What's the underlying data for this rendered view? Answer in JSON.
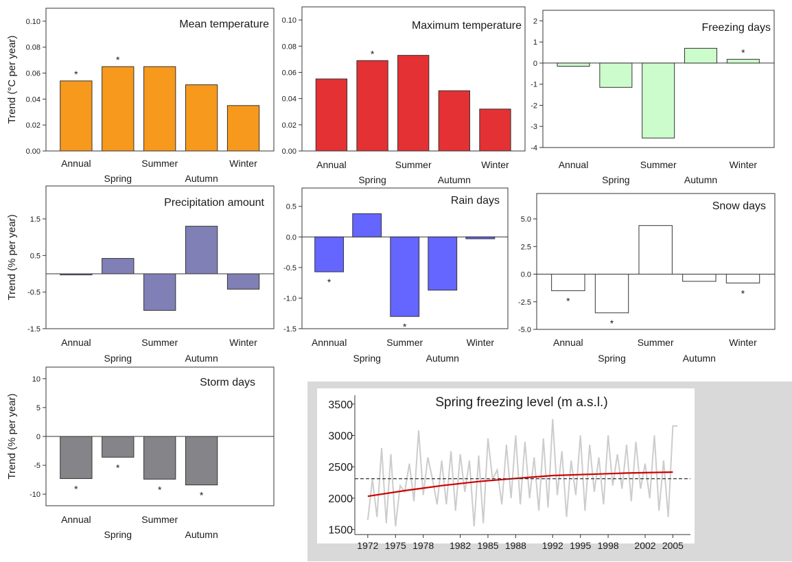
{
  "chart_data": [
    {
      "id": "mean-temperature",
      "type": "bar",
      "title": "Mean temperature",
      "ylabel": "Trend (°C per year)",
      "categories": [
        "Annual",
        "Spring",
        "Summer",
        "Autumn",
        "Winter"
      ],
      "values": [
        0.054,
        0.065,
        0.065,
        0.051,
        0.035
      ],
      "significant": [
        true,
        true,
        false,
        false,
        false
      ],
      "ylim": [
        0,
        0.11
      ],
      "yticks": [
        "0.00",
        "0.02",
        "0.04",
        "0.06",
        "0.08",
        "0.10"
      ],
      "ytick_values": [
        0,
        0.02,
        0.04,
        0.06,
        0.08,
        0.1
      ],
      "color": "#f7991c",
      "grid": false
    },
    {
      "id": "maximum-temperature",
      "type": "bar",
      "title": "Maximum temperature",
      "ylabel": "",
      "categories": [
        "Annual",
        "Spring",
        "Summer",
        "Autumn",
        "Winter"
      ],
      "values": [
        0.055,
        0.069,
        0.073,
        0.046,
        0.032
      ],
      "significant": [
        false,
        true,
        false,
        false,
        false
      ],
      "ylim": [
        0,
        0.11
      ],
      "yticks": [
        "0.00",
        "0.02",
        "0.04",
        "0.06",
        "0.08",
        "0.10"
      ],
      "ytick_values": [
        0,
        0.02,
        0.04,
        0.06,
        0.08,
        0.1
      ],
      "color": "#e33134",
      "grid": false
    },
    {
      "id": "freezing-days",
      "type": "bar",
      "title": "Freezing days",
      "ylabel": "",
      "categories": [
        "Annual",
        "Spring",
        "Summer",
        "Autumn",
        "Winter"
      ],
      "values": [
        -0.15,
        -1.15,
        -3.55,
        0.7,
        0.18
      ],
      "significant": [
        false,
        false,
        false,
        false,
        true
      ],
      "ylim": [
        -4,
        2.5
      ],
      "yticks": [
        "2",
        "1",
        "0",
        "-1",
        "-2",
        "-3",
        "-4"
      ],
      "ytick_values": [
        2,
        1,
        0,
        -1,
        -2,
        -3,
        -4
      ],
      "color": "#ccfccc",
      "grid": false
    },
    {
      "id": "precipitation-amount",
      "type": "bar",
      "title": "Precipitation amount",
      "ylabel": "Trend (% per year)",
      "categories": [
        "Annual",
        "Spring",
        "Summer",
        "Autumn",
        "Winter"
      ],
      "values": [
        -0.03,
        0.42,
        -1.0,
        1.3,
        -0.42
      ],
      "significant": [
        false,
        false,
        false,
        false,
        false
      ],
      "ylim": [
        -1.5,
        2.4
      ],
      "yticks": [
        "1.5",
        "0.5",
        "-0.5",
        "-1.5"
      ],
      "ytick_values": [
        1.5,
        0.5,
        -0.5,
        -1.5
      ],
      "color": "#8080b6",
      "grid": false
    },
    {
      "id": "rain-days",
      "type": "bar",
      "title": "Rain days",
      "ylabel": "",
      "categories": [
        "Annnual",
        "Spring",
        "Summer",
        "Autumn",
        "Winter"
      ],
      "values": [
        -0.57,
        0.38,
        -1.3,
        -0.87,
        -0.03
      ],
      "significant": [
        true,
        false,
        true,
        false,
        false
      ],
      "ylim": [
        -1.5,
        0.8
      ],
      "yticks": [
        "0.5",
        "0.0",
        "-0.5",
        "-1.0",
        "-1.5"
      ],
      "ytick_values": [
        0.5,
        0,
        -0.5,
        -1.0,
        -1.5
      ],
      "color": "#6565ff",
      "grid": false
    },
    {
      "id": "snow-days",
      "type": "bar",
      "title": "Snow days",
      "ylabel": "",
      "categories": [
        "Annual",
        "Spring",
        "Summer",
        "Autumn",
        "Winter"
      ],
      "values": [
        -1.5,
        -3.5,
        4.4,
        -0.65,
        -0.8
      ],
      "significant": [
        true,
        true,
        false,
        false,
        true
      ],
      "ylim": [
        -5,
        7.3
      ],
      "yticks": [
        "5.0",
        "2.5",
        "0.0",
        "-2.5",
        "-5.0"
      ],
      "ytick_values": [
        5,
        2.5,
        0,
        -2.5,
        -5
      ],
      "color": "#ffffff",
      "grid": false
    },
    {
      "id": "storm-days",
      "type": "bar",
      "title": "Storm days",
      "ylabel": "Trend (% per year)",
      "categories": [
        "Annual",
        "Spring",
        "Summer",
        "Autumn"
      ],
      "values": [
        -7.3,
        -3.6,
        -7.4,
        -8.4
      ],
      "significant": [
        true,
        true,
        true,
        true
      ],
      "ylim": [
        -12,
        12
      ],
      "yticks": [
        "10",
        "5",
        "0",
        "-5",
        "-10"
      ],
      "ytick_values": [
        10,
        5,
        0,
        -5,
        -10
      ],
      "color": "#858589",
      "grid": false
    },
    {
      "id": "spring-freezing-level",
      "type": "line",
      "title": "Spring freezing level (m a.s.l.)",
      "xlabel": "",
      "ylabel": "",
      "x": [
        1972,
        1973,
        1974,
        1975,
        1976,
        1977,
        1978,
        1979,
        1980,
        1981,
        1982,
        1983,
        1984,
        1985,
        1986,
        1987,
        1988,
        1989,
        1990,
        1991,
        1992,
        1993,
        1994,
        1995,
        1996,
        1997,
        1998,
        1999,
        2000,
        2001,
        2002,
        2003,
        2004,
        2005
      ],
      "xlim": [
        1970.6,
        2006.9
      ],
      "xticks": [
        "1972",
        "1975",
        "1978",
        "1982",
        "1985",
        "1988",
        "1992",
        "1995",
        "1998",
        "2002",
        "2005"
      ],
      "xtick_values": [
        1972,
        1975,
        1978,
        1982,
        1985,
        1988,
        1992,
        1995,
        1998,
        2002,
        2005
      ],
      "ylim": [
        1420,
        3640
      ],
      "yticks": [
        "1500",
        "2000",
        "2500",
        "3000",
        "3500"
      ],
      "ytick_values": [
        1500,
        2000,
        2500,
        3000,
        3500
      ],
      "series": [
        {
          "role": "observed",
          "color": "#cccccc",
          "x": [
            1972,
            1972.5,
            1973,
            1973.5,
            1974,
            1974.5,
            1975,
            1975.5,
            1976,
            1976.5,
            1977,
            1977.5,
            1978,
            1978.5,
            1979,
            1979.5,
            1980,
            1980.5,
            1981,
            1981.5,
            1982,
            1982.5,
            1983,
            1983.5,
            1984,
            1984.5,
            1985,
            1985.5,
            1986,
            1986.5,
            1987,
            1987.5,
            1988,
            1988.5,
            1989,
            1989.5,
            1990,
            1990.5,
            1991,
            1991.5,
            1992,
            1992.5,
            1993,
            1993.5,
            1994,
            1994.5,
            1995,
            1995.5,
            1996,
            1996.5,
            1997,
            1997.5,
            1998,
            1998.5,
            1999,
            1999.5,
            2000,
            2000.5,
            2001,
            2001.5,
            2002,
            2002.5,
            2003,
            2003.5,
            2004,
            2004.5,
            2005,
            2005.5
          ],
          "values": [
            1650,
            2300,
            1700,
            2800,
            1600,
            2700,
            1550,
            2200,
            2100,
            2550,
            1950,
            3080,
            2050,
            2650,
            2300,
            1900,
            2600,
            1900,
            2750,
            1800,
            2700,
            2100,
            2600,
            1550,
            2680,
            1600,
            2950,
            2300,
            2450,
            1900,
            2850,
            2000,
            3000,
            1900,
            2900,
            2000,
            2650,
            1800,
            2950,
            1850,
            3260,
            2050,
            2750,
            1700,
            2600,
            2050,
            3000,
            1800,
            2850,
            2100,
            2650,
            1900,
            3000,
            2200,
            2700,
            2150,
            2850,
            1950,
            2900,
            2150,
            2550,
            2000,
            3000,
            1800,
            2600,
            1700,
            3150,
            3150
          ]
        },
        {
          "role": "trend",
          "color": "#cc0000",
          "x": [
            1972,
            1976,
            1980,
            1984,
            1988,
            1992,
            1996,
            2000,
            2005
          ],
          "values": [
            2030,
            2120,
            2200,
            2265,
            2315,
            2360,
            2380,
            2400,
            2415
          ]
        },
        {
          "role": "mean",
          "color": "#333333",
          "x": [
            1970.6,
            2006.9
          ],
          "values": [
            2310,
            2310
          ]
        }
      ]
    }
  ]
}
